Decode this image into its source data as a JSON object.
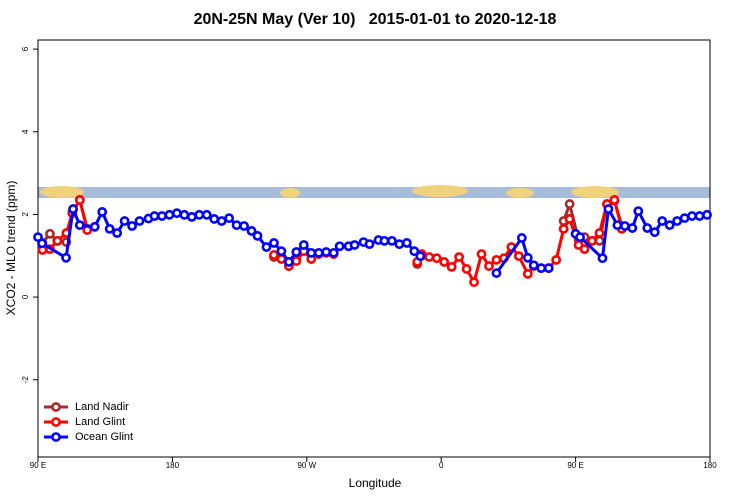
{
  "chart_data": {
    "type": "line",
    "title": "20N-25N May (Ver 10)   2015-01-01 to 2020-12-18",
    "xlabel": "Longitude",
    "ylabel": "XCO2 - MLO trend (ppm)",
    "xlim": [
      90,
      540
    ],
    "xticks": [
      {
        "value": 90,
        "label": "90 E"
      },
      180,
      {
        "value": 270,
        "label": "90 W"
      },
      {
        "value": 360,
        "label": "0"
      },
      {
        "value": 450,
        "label": "90 E"
      },
      {
        "value": 540,
        "label": "180"
      }
    ],
    "ylim": [
      -3.87,
      6.22
    ],
    "yticks": [
      -2,
      0,
      2,
      4,
      6
    ],
    "legend": "bottom-left",
    "series": [
      {
        "name": "Land Nadir",
        "color": "#a52a2a",
        "x": [
          93,
          98,
          103,
          109,
          113,
          118,
          123,
          null,
          248,
          253,
          258,
          263,
          null,
          344,
          347,
          null,
          442,
          446,
          452,
          456,
          461,
          466,
          471,
          476,
          481
        ],
        "values": [
          1.31,
          1.53,
          1.36,
          1.33,
          2.06,
          2.35,
          1.65,
          null,
          0.97,
          0.97,
          0.75,
          0.92,
          null,
          0.8,
          1.0,
          null,
          1.84,
          2.25,
          1.38,
          1.45,
          1.36,
          1.36,
          2.25,
          2.33,
          1.72
        ]
      },
      {
        "name": "Land Glint",
        "color": "#ff0000",
        "x": [
          93,
          98,
          103,
          109,
          113,
          118,
          123,
          null,
          248,
          253,
          258,
          263,
          268,
          273,
          278,
          283,
          288,
          null,
          344,
          347,
          352,
          357,
          362,
          367,
          372,
          377,
          382,
          387,
          392,
          397,
          402,
          407,
          412,
          418,
          422,
          427,
          432,
          437,
          442,
          446,
          452,
          456,
          461,
          466,
          471,
          476,
          481
        ],
        "values": [
          1.14,
          1.16,
          1.36,
          1.55,
          2.03,
          2.35,
          1.62,
          null,
          1.02,
          0.92,
          0.75,
          0.87,
          1.11,
          0.92,
          1.04,
          1.07,
          1.04,
          null,
          0.85,
          1.04,
          0.97,
          0.94,
          0.85,
          0.73,
          0.97,
          0.68,
          0.36,
          1.04,
          0.75,
          0.9,
          0.94,
          1.21,
          0.99,
          0.56,
          0.75,
          0.7,
          0.7,
          0.9,
          1.65,
          1.89,
          1.26,
          1.16,
          1.36,
          1.55,
          2.25,
          2.35,
          1.65
        ]
      },
      {
        "name": "Ocean Glint",
        "color": "#0000ff",
        "x": [
          90,
          92.7,
          108.8,
          113.5,
          118,
          128,
          133,
          138,
          143,
          148,
          153,
          158,
          164,
          168,
          173,
          178,
          183,
          188,
          193,
          198,
          203,
          208,
          213,
          218,
          223,
          228,
          233,
          237,
          243,
          248,
          253,
          258,
          263,
          268,
          273,
          278,
          283,
          288,
          292,
          298,
          302,
          308,
          312,
          318,
          322,
          327,
          332,
          337,
          342,
          346,
          null,
          397,
          414,
          418,
          422,
          427,
          432,
          null,
          450,
          453,
          468,
          472,
          478,
          483,
          488,
          492,
          498,
          503,
          508,
          513,
          518,
          523,
          528,
          533,
          538
        ],
        "values": [
          1.45,
          1.3,
          0.95,
          2.13,
          1.74,
          1.7,
          2.06,
          1.65,
          1.55,
          1.84,
          1.72,
          1.84,
          1.9,
          1.96,
          1.96,
          1.99,
          2.03,
          1.99,
          1.94,
          1.99,
          1.99,
          1.89,
          1.84,
          1.91,
          1.74,
          1.72,
          1.6,
          1.48,
          1.21,
          1.31,
          1.11,
          0.85,
          1.09,
          1.26,
          1.07,
          1.07,
          1.09,
          1.07,
          1.23,
          1.23,
          1.26,
          1.33,
          1.28,
          1.38,
          1.36,
          1.36,
          1.28,
          1.31,
          1.11,
          0.99,
          null,
          0.58,
          1.43,
          0.95,
          0.77,
          0.7,
          0.7,
          null,
          1.53,
          1.45,
          0.94,
          2.13,
          1.74,
          1.72,
          1.67,
          2.08,
          1.67,
          1.57,
          1.84,
          1.74,
          1.84,
          1.91,
          1.96,
          1.96,
          1.99
        ]
      }
    ]
  }
}
